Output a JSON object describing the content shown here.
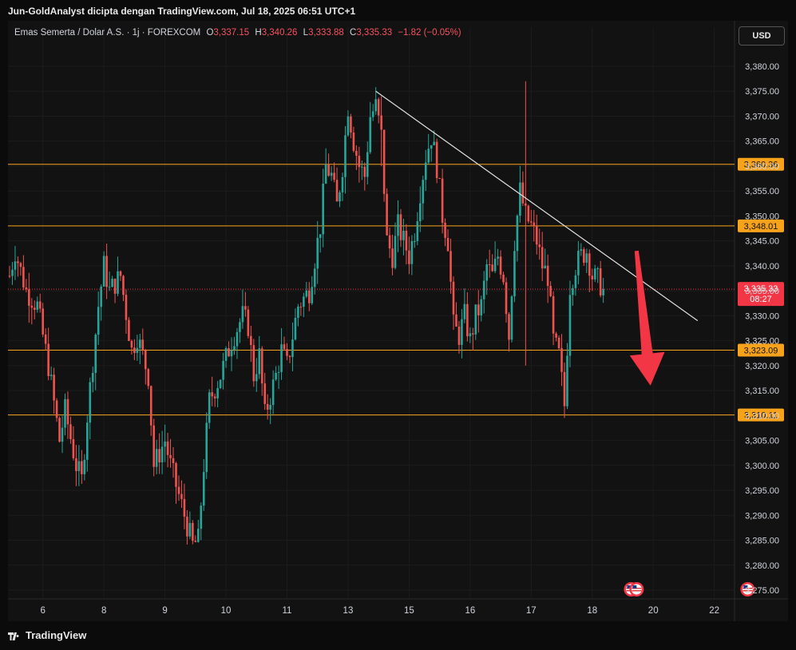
{
  "header": {
    "credit": "Jun-GoldAnalyst dicipta dengan TradingView.com, Jul 18, 2025 06:51 UTC+1"
  },
  "legend": {
    "symbol": "Emas Semerta / Dolar A.S. · 1j · FOREXCOM",
    "o_label": "O",
    "o_value": "3,337.15",
    "h_label": "H",
    "h_value": "3,340.26",
    "l_label": "L",
    "l_value": "3,333.88",
    "c_label": "C",
    "c_value": "3,335.33",
    "change": "−1.82 (−0.05%)"
  },
  "currency_button": "USD",
  "footer": {
    "brand": "TradingView"
  },
  "price_badge": {
    "price": "3,335.33",
    "countdown": "08:27"
  },
  "colors": {
    "up": "#26a69a",
    "down": "#ef5350",
    "level": "#f7a21b",
    "trendline": "#e0e0e0",
    "arrow": "#f23645",
    "current": "#f23645"
  },
  "chart_data": {
    "type": "candlestick",
    "symbol": "XAUUSD",
    "timeframe": "1h",
    "ylim": [
      3272,
      3388
    ],
    "y_ticks": [
      3275,
      3280,
      3285,
      3290,
      3295,
      3300,
      3305,
      3310,
      3315,
      3320,
      3325,
      3330,
      3335,
      3340,
      3345,
      3350,
      3355,
      3360,
      3365,
      3370,
      3375,
      3380
    ],
    "y_tick_labels": [
      "3,275.00",
      "3,280.00",
      "3,285.00",
      "3,290.00",
      "3,295.00",
      "3,300.00",
      "3,305.00",
      "3,310.00",
      "3,315.00",
      "3,320.00",
      "3,325.00",
      "3,330.00",
      "3,335.00",
      "3,340.00",
      "3,345.00",
      "3,350.00",
      "3,355.00",
      "3,360.00",
      "3,365.00",
      "3,370.00",
      "3,375.00",
      "3,380.00"
    ],
    "x_ticks": [
      {
        "label": "6",
        "bar": 6
      },
      {
        "label": "8",
        "bar": 17
      },
      {
        "label": "9",
        "bar": 28
      },
      {
        "label": "10",
        "bar": 39
      },
      {
        "label": "11",
        "bar": 50
      },
      {
        "label": "13",
        "bar": 61
      },
      {
        "label": "15",
        "bar": 72
      },
      {
        "label": "16",
        "bar": 83
      },
      {
        "label": "17",
        "bar": 94
      },
      {
        "label": "18",
        "bar": 105
      },
      {
        "label": "20",
        "bar": 116
      },
      {
        "label": "22",
        "bar": 127
      }
    ],
    "anchors": [
      [
        0,
        3338
      ],
      [
        1,
        3343
      ],
      [
        3,
        3335
      ],
      [
        5,
        3332
      ],
      [
        7,
        3320
      ],
      [
        9,
        3305
      ],
      [
        10,
        3311
      ],
      [
        12,
        3300
      ],
      [
        13,
        3297
      ],
      [
        14,
        3310
      ],
      [
        16,
        3332
      ],
      [
        17,
        3340
      ],
      [
        18,
        3335
      ],
      [
        20,
        3338
      ],
      [
        22,
        3323
      ],
      [
        23,
        3326
      ],
      [
        25,
        3318
      ],
      [
        26,
        3300
      ],
      [
        28,
        3305
      ],
      [
        29,
        3300
      ],
      [
        31,
        3292
      ],
      [
        33,
        3284
      ],
      [
        34,
        3285
      ],
      [
        35,
        3300
      ],
      [
        36,
        3313
      ],
      [
        38,
        3318
      ],
      [
        40,
        3325
      ],
      [
        42,
        3330
      ],
      [
        43,
        3328
      ],
      [
        44,
        3318
      ],
      [
        45,
        3322
      ],
      [
        46,
        3310
      ],
      [
        48,
        3318
      ],
      [
        49,
        3323
      ],
      [
        50,
        3320
      ],
      [
        52,
        3332
      ],
      [
        54,
        3335
      ],
      [
        56,
        3348
      ],
      [
        57,
        3360
      ],
      [
        58,
        3358
      ],
      [
        59,
        3352
      ],
      [
        60,
        3360
      ],
      [
        61,
        3372
      ],
      [
        62,
        3365
      ],
      [
        63,
        3360
      ],
      [
        64,
        3358
      ],
      [
        65,
        3370
      ],
      [
        66,
        3372
      ],
      [
        67,
        3366
      ],
      [
        68,
        3345
      ],
      [
        69,
        3342
      ],
      [
        70,
        3348
      ],
      [
        71,
        3345
      ],
      [
        72,
        3342
      ],
      [
        73,
        3347
      ],
      [
        74,
        3355
      ],
      [
        75,
        3362
      ],
      [
        76,
        3366
      ],
      [
        77,
        3360
      ],
      [
        78,
        3350
      ],
      [
        79,
        3345
      ],
      [
        80,
        3328
      ],
      [
        81,
        3326
      ],
      [
        82,
        3330
      ],
      [
        83,
        3325
      ],
      [
        84,
        3330
      ],
      [
        85,
        3332
      ],
      [
        86,
        3340
      ],
      [
        87,
        3338
      ],
      [
        88,
        3342
      ],
      [
        89,
        3338
      ],
      [
        90,
        3326
      ],
      [
        91,
        3345
      ],
      [
        92,
        3355
      ],
      [
        93,
        3350
      ],
      [
        94,
        3348
      ],
      [
        95,
        3345
      ],
      [
        96,
        3340
      ],
      [
        97,
        3338
      ],
      [
        98,
        3325
      ],
      [
        99,
        3322
      ],
      [
        100,
        3312
      ],
      [
        101,
        3336
      ],
      [
        102,
        3340
      ],
      [
        103,
        3342
      ],
      [
        104,
        3343
      ],
      [
        105,
        3338
      ],
      [
        106,
        3337.15
      ],
      [
        107,
        3335.33
      ]
    ],
    "annotated_spikes": [
      {
        "bar": 93,
        "high": 3377,
        "low": 3320
      },
      {
        "bar": 67,
        "high": 3374,
        "low": 3360
      }
    ],
    "horizontal_levels": [
      {
        "price": 3360.36,
        "label": "3,360.36"
      },
      {
        "price": 3348.01,
        "label": "3,348.01"
      },
      {
        "price": 3323.09,
        "label": "3,323.09"
      },
      {
        "price": 3310.11,
        "label": "3,310.11"
      }
    ],
    "current_price": 3335.33,
    "trendline": {
      "from": {
        "bar": 66,
        "price": 3375
      },
      "to": {
        "bar": 124,
        "price": 3329
      }
    },
    "arrow": {
      "from": {
        "bar": 113,
        "price": 3343
      },
      "to": {
        "bar": 115.5,
        "price": 3316
      }
    },
    "event_icons": [
      {
        "bar": 112
      },
      {
        "bar": 113
      },
      {
        "bar": 133
      }
    ]
  }
}
